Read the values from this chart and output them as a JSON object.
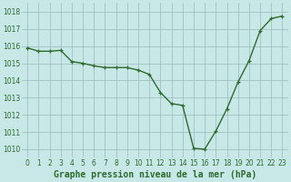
{
  "x": [
    0,
    1,
    2,
    3,
    4,
    5,
    6,
    7,
    8,
    9,
    10,
    11,
    12,
    13,
    14,
    15,
    16,
    17,
    18,
    19,
    20,
    21,
    22,
    23
  ],
  "y": [
    1015.9,
    1015.7,
    1015.7,
    1015.75,
    1015.1,
    1015.0,
    1014.85,
    1014.75,
    1014.75,
    1014.75,
    1014.6,
    1014.35,
    1013.3,
    1012.65,
    1012.55,
    1010.05,
    1010.0,
    1011.05,
    1012.35,
    1013.9,
    1015.15,
    1016.9,
    1017.6,
    1017.75
  ],
  "line_color": "#2d6a2d",
  "marker": "+",
  "marker_color": "#2d6a2d",
  "bg_color": "#c8e8e8",
  "grid_color": "#9ababa",
  "xlabel": "Graphe pression niveau de la mer (hPa)",
  "xlabel_color": "#2d6a2d",
  "tick_color": "#2d6a2d",
  "ylim": [
    1009.5,
    1018.5
  ],
  "xlim": [
    -0.5,
    23.5
  ],
  "yticks": [
    1010,
    1011,
    1012,
    1013,
    1014,
    1015,
    1016,
    1017,
    1018
  ],
  "xticks": [
    0,
    1,
    2,
    3,
    4,
    5,
    6,
    7,
    8,
    9,
    10,
    11,
    12,
    13,
    14,
    15,
    16,
    17,
    18,
    19,
    20,
    21,
    22,
    23
  ],
  "tick_fontsize": 5.5,
  "xlabel_fontsize": 7,
  "linewidth": 1.0,
  "markersize": 3.5
}
